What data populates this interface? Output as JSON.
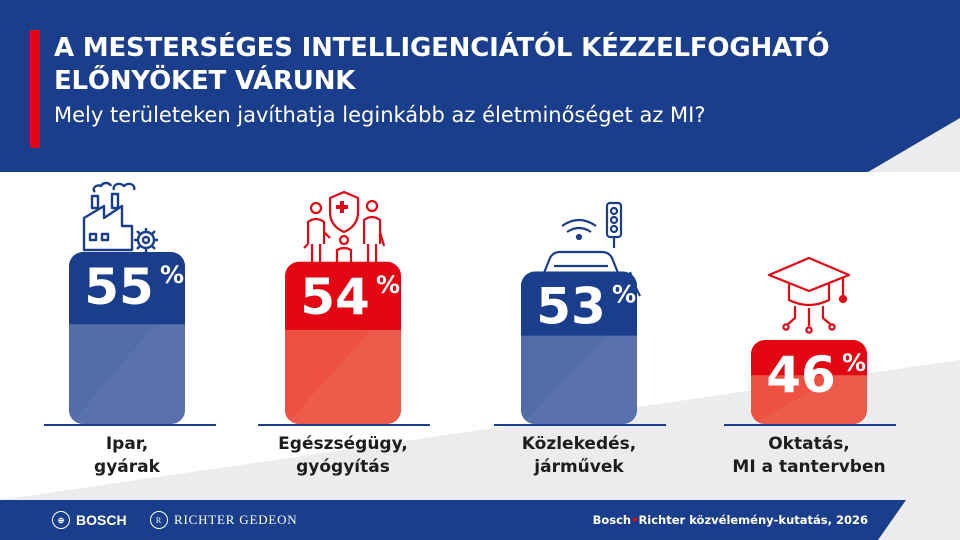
{
  "header": {
    "title": "A MESTERSÉGES INTELLIGENCIÁTÓL KÉZZELFOGHATÓ ELŐNYÖKET VÁRUNK",
    "subtitle": "Mely területeken javíthatja leginkább az életminőséget az MI?"
  },
  "colors": {
    "navy": "#1a3e8c",
    "red": "#e30613",
    "background": "#ececef"
  },
  "chart_data": {
    "type": "bar",
    "title": "A MESTERSÉGES INTELLIGENCIÁTÓL KÉZZELFOGHATÓ ELŐNYÖKET VÁRUNK",
    "subtitle": "Mely területeken javíthatja leginkább az életminőséget az MI?",
    "unit": "%",
    "ylim": [
      0,
      55
    ],
    "categories": [
      {
        "line1": "Ipar,",
        "line2": "gyárak"
      },
      {
        "line1": "Egészségügy,",
        "line2": "gyógyítás"
      },
      {
        "line1": "Közlekedés,",
        "line2": "járművek"
      },
      {
        "line1": "Oktatás,",
        "line2": "MI a tantervben"
      }
    ],
    "values": [
      55,
      54,
      53,
      46
    ],
    "value_labels": [
      "55",
      "54",
      "53",
      "46"
    ],
    "bar_colors": [
      "#1a3e8c",
      "#e30613",
      "#1a3e8c",
      "#e30613"
    ],
    "icons": [
      "factory-icon",
      "family-health-icon",
      "car-traffic-icon",
      "graduation-cap-ai-icon"
    ]
  },
  "footer": {
    "bosch": "BOSCH",
    "richter": "RICHTER GEDEON",
    "source_a": "Bosch",
    "source_sep": "•",
    "source_b": "Richter közvélemény-kutatás, 2026"
  }
}
